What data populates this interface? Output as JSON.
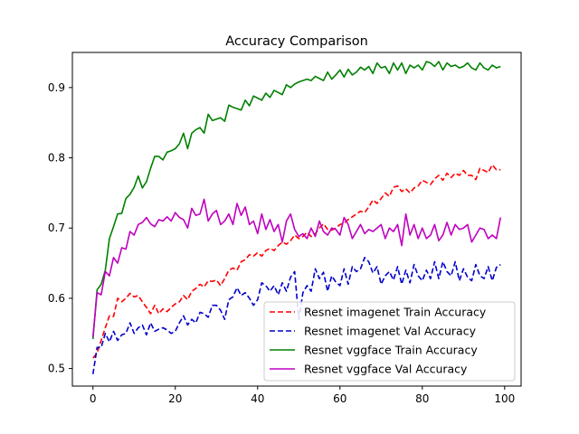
{
  "chart_data": {
    "type": "line",
    "title": "Accuracy Comparison",
    "xlabel": "",
    "ylabel": "",
    "xlim": [
      -5,
      104
    ],
    "ylim": [
      0.475,
      0.95
    ],
    "xticks": [
      0,
      20,
      40,
      60,
      80,
      100
    ],
    "yticks": [
      0.5,
      0.6,
      0.7,
      0.8,
      0.9
    ],
    "grid": false,
    "legend_position": "lower-right",
    "series": [
      {
        "name": "Resnet imagenet Train Accuracy",
        "color": "#ff0000",
        "style": "dashed",
        "x": [
          0,
          1,
          2,
          3,
          4,
          5,
          6,
          7,
          8,
          9,
          10,
          11,
          12,
          13,
          14,
          15,
          16,
          17,
          18,
          19,
          20,
          21,
          22,
          23,
          24,
          25,
          26,
          27,
          28,
          29,
          30,
          31,
          32,
          33,
          34,
          35,
          36,
          37,
          38,
          39,
          40,
          41,
          42,
          43,
          44,
          45,
          46,
          47,
          48,
          49,
          50,
          51,
          52,
          53,
          54,
          55,
          56,
          57,
          58,
          59,
          60,
          61,
          62,
          63,
          64,
          65,
          66,
          67,
          68,
          69,
          70,
          71,
          72,
          73,
          74,
          75,
          76,
          77,
          78,
          79,
          80,
          81,
          82,
          83,
          84,
          85,
          86,
          87,
          88,
          89,
          90,
          91,
          92,
          93,
          94,
          95,
          96,
          97,
          98,
          99
        ],
        "values": [
          0.515,
          0.522,
          0.54,
          0.558,
          0.575,
          0.574,
          0.6,
          0.595,
          0.6,
          0.607,
          0.602,
          0.604,
          0.595,
          0.587,
          0.578,
          0.59,
          0.578,
          0.585,
          0.581,
          0.587,
          0.592,
          0.595,
          0.604,
          0.598,
          0.61,
          0.614,
          0.62,
          0.616,
          0.625,
          0.624,
          0.626,
          0.618,
          0.628,
          0.64,
          0.643,
          0.64,
          0.652,
          0.655,
          0.662,
          0.66,
          0.665,
          0.66,
          0.668,
          0.671,
          0.668,
          0.675,
          0.68,
          0.677,
          0.682,
          0.69,
          0.685,
          0.688,
          0.694,
          0.688,
          0.692,
          0.7,
          0.706,
          0.698,
          0.697,
          0.7,
          0.705,
          0.707,
          0.712,
          0.716,
          0.72,
          0.724,
          0.722,
          0.73,
          0.74,
          0.735,
          0.742,
          0.75,
          0.745,
          0.758,
          0.76,
          0.752,
          0.756,
          0.75,
          0.757,
          0.76,
          0.768,
          0.765,
          0.762,
          0.77,
          0.775,
          0.768,
          0.778,
          0.772,
          0.778,
          0.775,
          0.782,
          0.775,
          0.775,
          0.769,
          0.785,
          0.782,
          0.779,
          0.79,
          0.783,
          0.783
        ]
      },
      {
        "name": "Resnet imagenet Val Accuracy",
        "color": "#0000cc",
        "style": "dashed",
        "x": [
          0,
          1,
          2,
          3,
          4,
          5,
          6,
          7,
          8,
          9,
          10,
          11,
          12,
          13,
          14,
          15,
          16,
          17,
          18,
          19,
          20,
          21,
          22,
          23,
          24,
          25,
          26,
          27,
          28,
          29,
          30,
          31,
          32,
          33,
          34,
          35,
          36,
          37,
          38,
          39,
          40,
          41,
          42,
          43,
          44,
          45,
          46,
          47,
          48,
          49,
          50,
          51,
          52,
          53,
          54,
          55,
          56,
          57,
          58,
          59,
          60,
          61,
          62,
          63,
          64,
          65,
          66,
          67,
          68,
          69,
          70,
          71,
          72,
          73,
          74,
          75,
          76,
          77,
          78,
          79,
          80,
          81,
          82,
          83,
          84,
          85,
          86,
          87,
          88,
          89,
          90,
          91,
          92,
          93,
          94,
          95,
          96,
          97,
          98,
          99
        ],
        "values": [
          0.492,
          0.53,
          0.53,
          0.55,
          0.538,
          0.553,
          0.54,
          0.548,
          0.55,
          0.565,
          0.55,
          0.558,
          0.562,
          0.548,
          0.565,
          0.553,
          0.556,
          0.558,
          0.555,
          0.55,
          0.553,
          0.565,
          0.575,
          0.562,
          0.57,
          0.565,
          0.58,
          0.578,
          0.573,
          0.59,
          0.59,
          0.583,
          0.57,
          0.598,
          0.602,
          0.615,
          0.604,
          0.608,
          0.6,
          0.59,
          0.598,
          0.622,
          0.618,
          0.61,
          0.618,
          0.605,
          0.622,
          0.61,
          0.63,
          0.638,
          0.57,
          0.608,
          0.618,
          0.61,
          0.642,
          0.628,
          0.637,
          0.61,
          0.632,
          0.623,
          0.618,
          0.642,
          0.62,
          0.645,
          0.638,
          0.642,
          0.658,
          0.652,
          0.636,
          0.645,
          0.62,
          0.632,
          0.638,
          0.626,
          0.645,
          0.62,
          0.64,
          0.622,
          0.648,
          0.632,
          0.625,
          0.64,
          0.628,
          0.652,
          0.628,
          0.652,
          0.638,
          0.632,
          0.652,
          0.625,
          0.642,
          0.63,
          0.625,
          0.648,
          0.632,
          0.628,
          0.645,
          0.625,
          0.644,
          0.648
        ]
      },
      {
        "name": "Resnet vggface Train Accuracy",
        "color": "#008000",
        "style": "solid",
        "x": [
          0,
          1,
          2,
          3,
          4,
          5,
          6,
          7,
          8,
          9,
          10,
          11,
          12,
          13,
          14,
          15,
          16,
          17,
          18,
          19,
          20,
          21,
          22,
          23,
          24,
          25,
          26,
          27,
          28,
          29,
          30,
          31,
          32,
          33,
          34,
          35,
          36,
          37,
          38,
          39,
          40,
          41,
          42,
          43,
          44,
          45,
          46,
          47,
          48,
          49,
          50,
          51,
          52,
          53,
          54,
          55,
          56,
          57,
          58,
          59,
          60,
          61,
          62,
          63,
          64,
          65,
          66,
          67,
          68,
          69,
          70,
          71,
          72,
          73,
          74,
          75,
          76,
          77,
          78,
          79,
          80,
          81,
          82,
          83,
          84,
          85,
          86,
          87,
          88,
          89,
          90,
          91,
          92,
          93,
          94,
          95,
          96,
          97,
          98,
          99
        ],
        "values": [
          0.542,
          0.612,
          0.62,
          0.64,
          0.685,
          0.702,
          0.72,
          0.721,
          0.742,
          0.748,
          0.758,
          0.774,
          0.757,
          0.766,
          0.785,
          0.802,
          0.802,
          0.797,
          0.808,
          0.81,
          0.813,
          0.82,
          0.835,
          0.813,
          0.835,
          0.84,
          0.843,
          0.835,
          0.862,
          0.853,
          0.855,
          0.857,
          0.852,
          0.875,
          0.872,
          0.87,
          0.868,
          0.882,
          0.874,
          0.888,
          0.885,
          0.882,
          0.892,
          0.886,
          0.896,
          0.893,
          0.89,
          0.904,
          0.9,
          0.905,
          0.908,
          0.91,
          0.912,
          0.91,
          0.916,
          0.913,
          0.91,
          0.922,
          0.912,
          0.918,
          0.925,
          0.915,
          0.926,
          0.918,
          0.922,
          0.929,
          0.925,
          0.93,
          0.92,
          0.935,
          0.928,
          0.93,
          0.92,
          0.935,
          0.925,
          0.935,
          0.92,
          0.932,
          0.928,
          0.932,
          0.925,
          0.937,
          0.935,
          0.93,
          0.937,
          0.925,
          0.935,
          0.93,
          0.932,
          0.928,
          0.93,
          0.935,
          0.928,
          0.925,
          0.935,
          0.928,
          0.925,
          0.932,
          0.928,
          0.93
        ]
      },
      {
        "name": "Resnet vggface Val Accuracy",
        "color": "#bf00bf",
        "style": "solid",
        "x": [
          0,
          1,
          2,
          3,
          4,
          5,
          6,
          7,
          8,
          9,
          10,
          11,
          12,
          13,
          14,
          15,
          16,
          17,
          18,
          19,
          20,
          21,
          22,
          23,
          24,
          25,
          26,
          27,
          28,
          29,
          30,
          31,
          32,
          33,
          34,
          35,
          36,
          37,
          38,
          39,
          40,
          41,
          42,
          43,
          44,
          45,
          46,
          47,
          48,
          49,
          50,
          51,
          52,
          53,
          54,
          55,
          56,
          57,
          58,
          59,
          60,
          61,
          62,
          63,
          64,
          65,
          66,
          67,
          68,
          69,
          70,
          71,
          72,
          73,
          74,
          75,
          76,
          77,
          78,
          79,
          80,
          81,
          82,
          83,
          84,
          85,
          86,
          87,
          88,
          89,
          90,
          91,
          92,
          93,
          94,
          95,
          96,
          97,
          98,
          99
        ],
        "values": [
          0.545,
          0.608,
          0.605,
          0.638,
          0.632,
          0.658,
          0.65,
          0.672,
          0.67,
          0.695,
          0.69,
          0.705,
          0.708,
          0.715,
          0.706,
          0.702,
          0.712,
          0.71,
          0.716,
          0.71,
          0.722,
          0.715,
          0.712,
          0.7,
          0.728,
          0.718,
          0.72,
          0.741,
          0.71,
          0.72,
          0.725,
          0.705,
          0.71,
          0.72,
          0.705,
          0.735,
          0.718,
          0.73,
          0.705,
          0.71,
          0.692,
          0.72,
          0.698,
          0.712,
          0.695,
          0.705,
          0.68,
          0.71,
          0.72,
          0.698,
          0.688,
          0.692,
          0.685,
          0.7,
          0.688,
          0.71,
          0.695,
          0.69,
          0.7,
          0.698,
          0.69,
          0.715,
          0.705,
          0.685,
          0.695,
          0.705,
          0.692,
          0.698,
          0.695,
          0.7,
          0.705,
          0.685,
          0.7,
          0.695,
          0.705,
          0.675,
          0.72,
          0.69,
          0.705,
          0.685,
          0.7,
          0.685,
          0.69,
          0.705,
          0.682,
          0.69,
          0.708,
          0.69,
          0.705,
          0.698,
          0.7,
          0.705,
          0.68,
          0.69,
          0.7,
          0.698,
          0.685,
          0.69,
          0.685,
          0.715
        ]
      }
    ]
  }
}
